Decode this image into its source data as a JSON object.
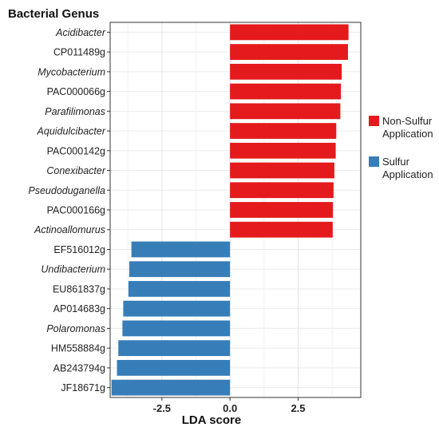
{
  "chart_data": {
    "type": "bar",
    "orientation": "horizontal",
    "title": "Bacterial Genus",
    "xlabel": "LDA score",
    "ylabel": "",
    "xlim": [
      -4.4,
      4.8
    ],
    "xticks": [
      "-2.5",
      "0.0",
      "2.5"
    ],
    "grid": true,
    "legend_position": "right",
    "series": [
      {
        "name": "Non-Sulfur Application",
        "color": "#E41A1C"
      },
      {
        "name": "Sulfur Application",
        "color": "#377EB8"
      }
    ],
    "bars": [
      {
        "label": "Acidibacter",
        "value": 4.35,
        "group": "Non-Sulfur Application",
        "italic": true
      },
      {
        "label": "CP011489g",
        "value": 4.33,
        "group": "Non-Sulfur Application",
        "italic": false
      },
      {
        "label": "Mycobacterium",
        "value": 4.1,
        "group": "Non-Sulfur Application",
        "italic": true
      },
      {
        "label": "PAC000066g",
        "value": 4.07,
        "group": "Non-Sulfur Application",
        "italic": false
      },
      {
        "label": "Parafilimonas",
        "value": 4.05,
        "group": "Non-Sulfur Application",
        "italic": true
      },
      {
        "label": "Aquidulcibacter",
        "value": 3.9,
        "group": "Non-Sulfur Application",
        "italic": true
      },
      {
        "label": "PAC000142g",
        "value": 3.88,
        "group": "Non-Sulfur Application",
        "italic": false
      },
      {
        "label": "Conexibacter",
        "value": 3.83,
        "group": "Non-Sulfur Application",
        "italic": true
      },
      {
        "label": "Pseudoduganella",
        "value": 3.8,
        "group": "Non-Sulfur Application",
        "italic": true
      },
      {
        "label": "PAC000166g",
        "value": 3.78,
        "group": "Non-Sulfur Application",
        "italic": false
      },
      {
        "label": "Actinoallomurus",
        "value": 3.77,
        "group": "Non-Sulfur Application",
        "italic": true
      },
      {
        "label": "EF516012g",
        "value": -3.62,
        "group": "Sulfur Application",
        "italic": false
      },
      {
        "label": "Undibacterium",
        "value": -3.7,
        "group": "Sulfur Application",
        "italic": true
      },
      {
        "label": "EU861837g",
        "value": -3.73,
        "group": "Sulfur Application",
        "italic": false
      },
      {
        "label": "AP014683g",
        "value": -3.92,
        "group": "Sulfur Application",
        "italic": false
      },
      {
        "label": "Polaromonas",
        "value": -3.95,
        "group": "Sulfur Application",
        "italic": true
      },
      {
        "label": "HM558884g",
        "value": -4.1,
        "group": "Sulfur Application",
        "italic": false
      },
      {
        "label": "AB243794g",
        "value": -4.15,
        "group": "Sulfur Application",
        "italic": false
      },
      {
        "label": "JF18671g",
        "value": -4.35,
        "group": "Sulfur Application",
        "italic": false
      }
    ]
  }
}
